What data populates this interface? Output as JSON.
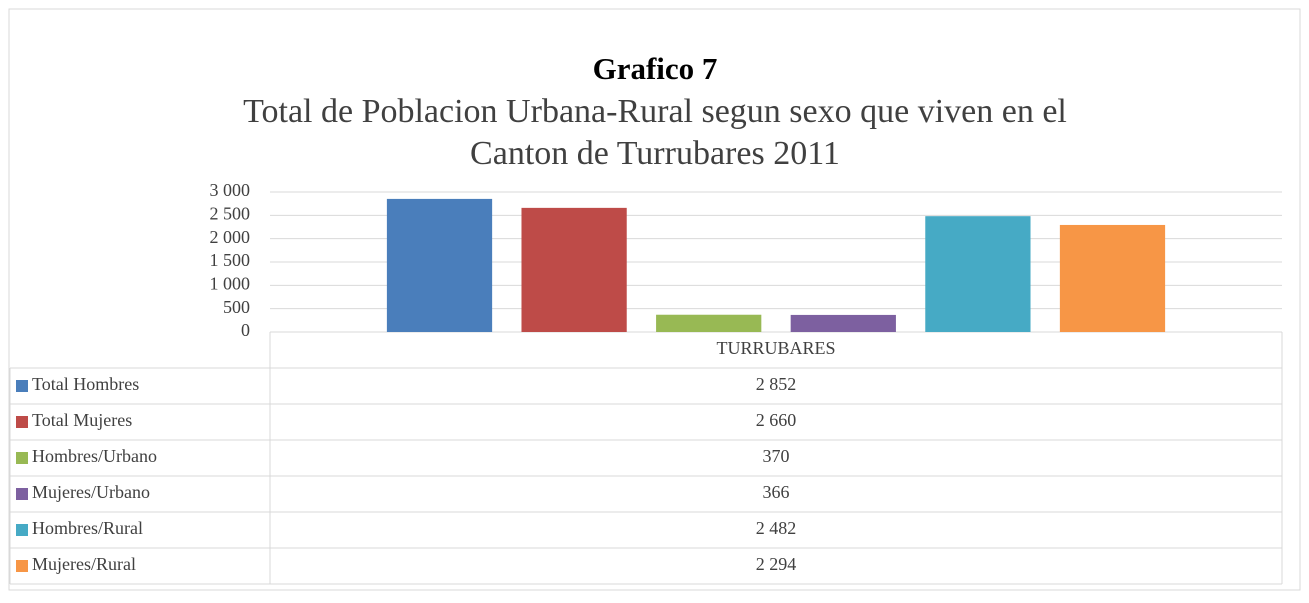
{
  "chart_data": {
    "type": "bar",
    "title": "Grafico 7",
    "subtitle": [
      "Total de Poblacion Urbana-Rural  segun sexo que viven en el",
      "Canton de Turrubares 2011"
    ],
    "categories": [
      "TURRUBARES"
    ],
    "series": [
      {
        "name": "Total Hombres",
        "color": "#4a7ebb",
        "values": [
          2852
        ],
        "value_labels": [
          "2 852"
        ]
      },
      {
        "name": "Total Mujeres",
        "color": "#be4b48",
        "values": [
          2660
        ],
        "value_labels": [
          "2 660"
        ]
      },
      {
        "name": "Hombres/Urbano",
        "color": "#98b954",
        "values": [
          370
        ],
        "value_labels": [
          "370"
        ]
      },
      {
        "name": "Mujeres/Urbano",
        "color": "#7d60a0",
        "values": [
          366
        ],
        "value_labels": [
          "366"
        ]
      },
      {
        "name": "Hombres/Rural",
        "color": "#46aac5",
        "values": [
          2482
        ],
        "value_labels": [
          "2 482"
        ]
      },
      {
        "name": "Mujeres/Rural",
        "color": "#f79646",
        "values": [
          2294
        ],
        "value_labels": [
          "2 294"
        ]
      }
    ],
    "ylim": [
      0,
      3000
    ],
    "yticks": [
      0,
      500,
      {
        "value": 1000,
        "label": "1 000"
      },
      {
        "value": 1500,
        "label": "1 500"
      },
      {
        "value": 2000,
        "label": "2 000"
      },
      {
        "value": 2500,
        "label": "2 500"
      },
      {
        "value": 3000,
        "label": "3 000"
      }
    ],
    "grid": true,
    "legend": "table"
  }
}
